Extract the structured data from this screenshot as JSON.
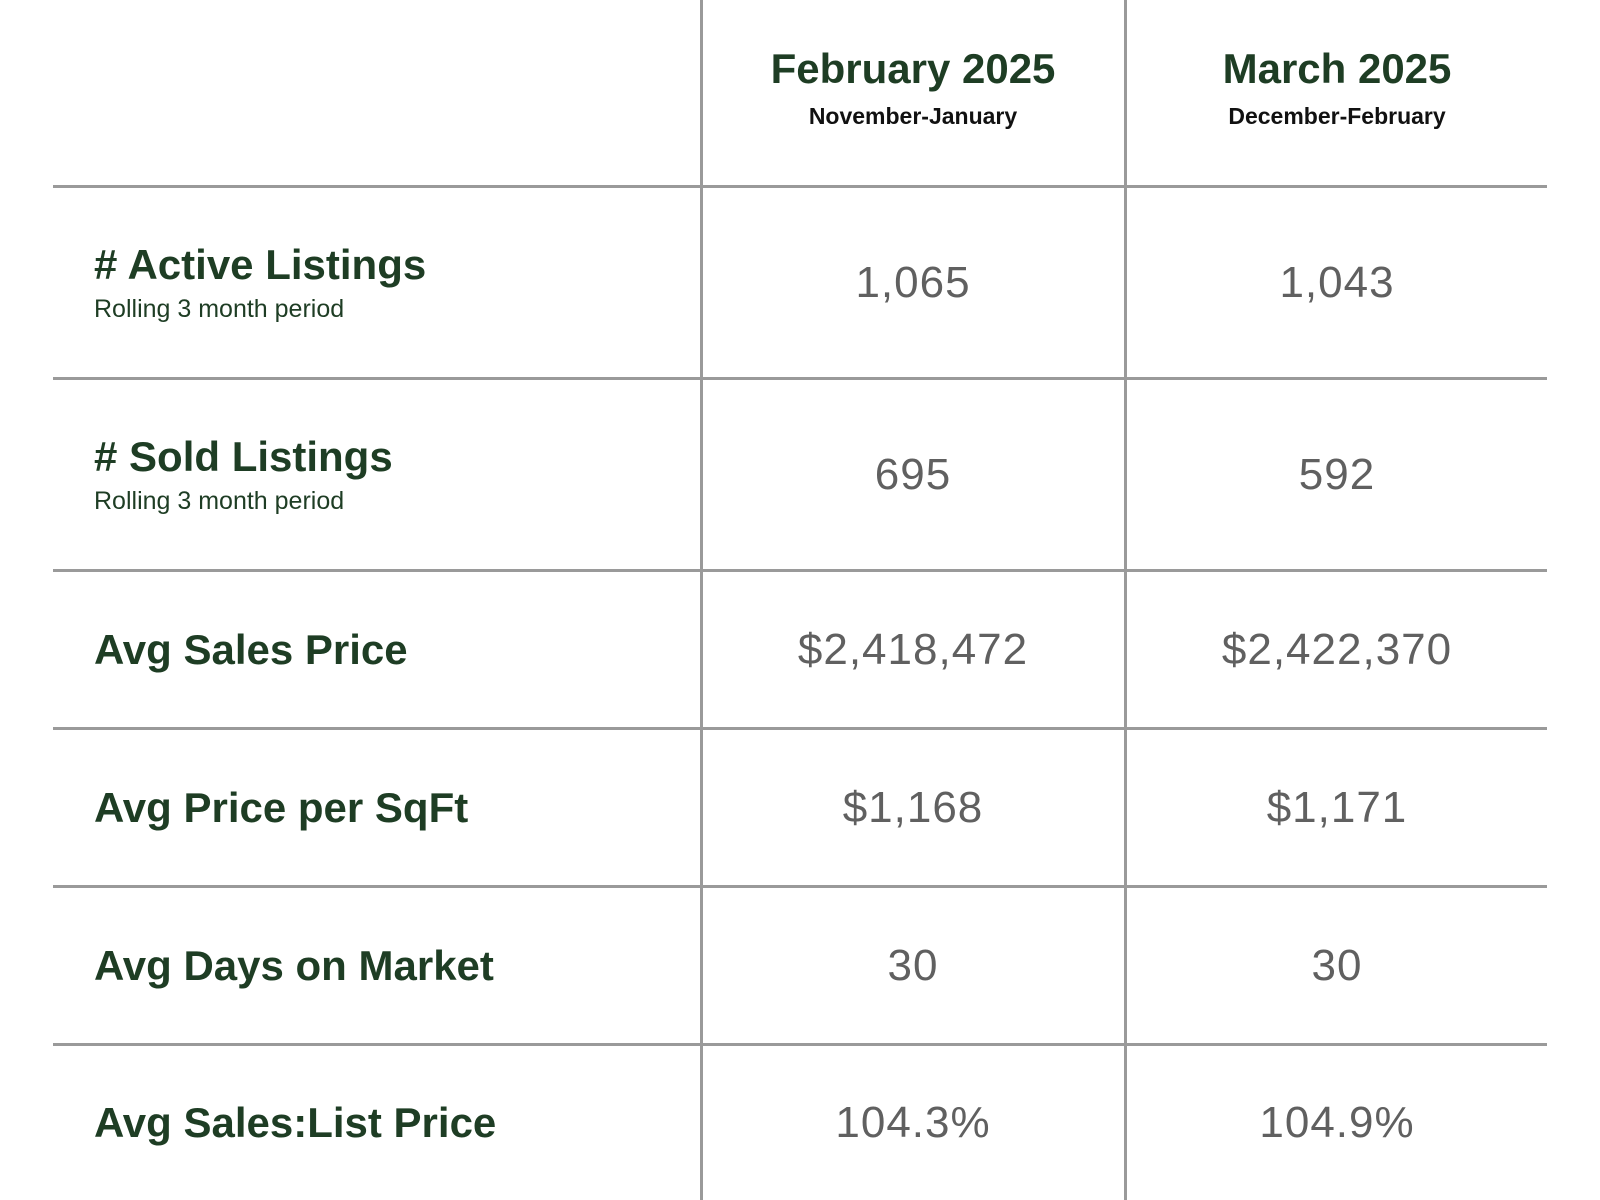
{
  "chart_data": {
    "type": "table",
    "columns": [
      {
        "title": "February 2025",
        "period": "November-January"
      },
      {
        "title": "March 2025",
        "period": "December-February"
      }
    ],
    "rows": [
      {
        "label": "# Active Listings",
        "note": "Rolling 3 month period",
        "values": [
          "1,065",
          "1,043"
        ]
      },
      {
        "label": "# Sold Listings",
        "note": "Rolling 3 month period",
        "values": [
          "695",
          "592"
        ]
      },
      {
        "label": "Avg Sales Price",
        "note": "",
        "values": [
          "$2,418,472",
          "$2,422,370"
        ]
      },
      {
        "label": "Avg Price per SqFt",
        "note": "",
        "values": [
          "$1,168",
          "$1,171"
        ]
      },
      {
        "label": "Avg Days on Market",
        "note": "",
        "values": [
          "30",
          "30"
        ]
      },
      {
        "label": "Avg Sales:List Price",
        "note": "",
        "values": [
          "104.3%",
          "104.9%"
        ]
      }
    ]
  },
  "colors": {
    "heading": "#1e3d24",
    "value": "#606060",
    "rule": "#9a9a9a"
  }
}
